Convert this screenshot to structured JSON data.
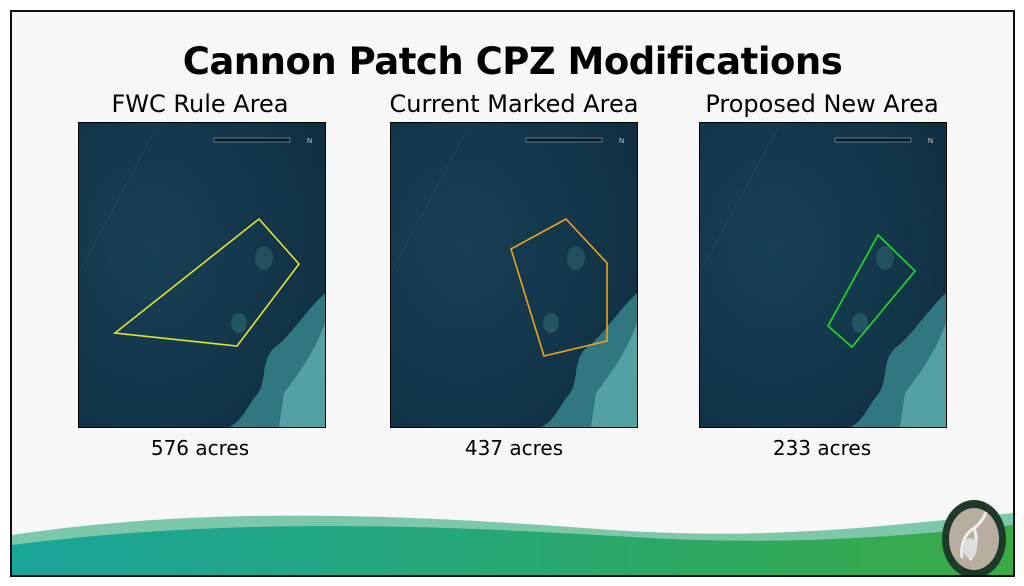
{
  "slide": {
    "title": "Cannon Patch CPZ Modifications",
    "panels": [
      {
        "heading": "FWC Rule Area",
        "caption": "576 acres",
        "outline_color": "#e6e22a"
      },
      {
        "heading": "Current Marked Area",
        "caption": "437 acres",
        "outline_color": "#f0a020"
      },
      {
        "heading": "Proposed New Area",
        "caption": "233 acres",
        "outline_color": "#22dd22"
      }
    ],
    "logo": "Florida Fish and Wildlife Conservation Commission",
    "colors": {
      "water": "#12354a",
      "wave_green": "#3aa84a",
      "wave_teal": "#1aa59a"
    }
  }
}
